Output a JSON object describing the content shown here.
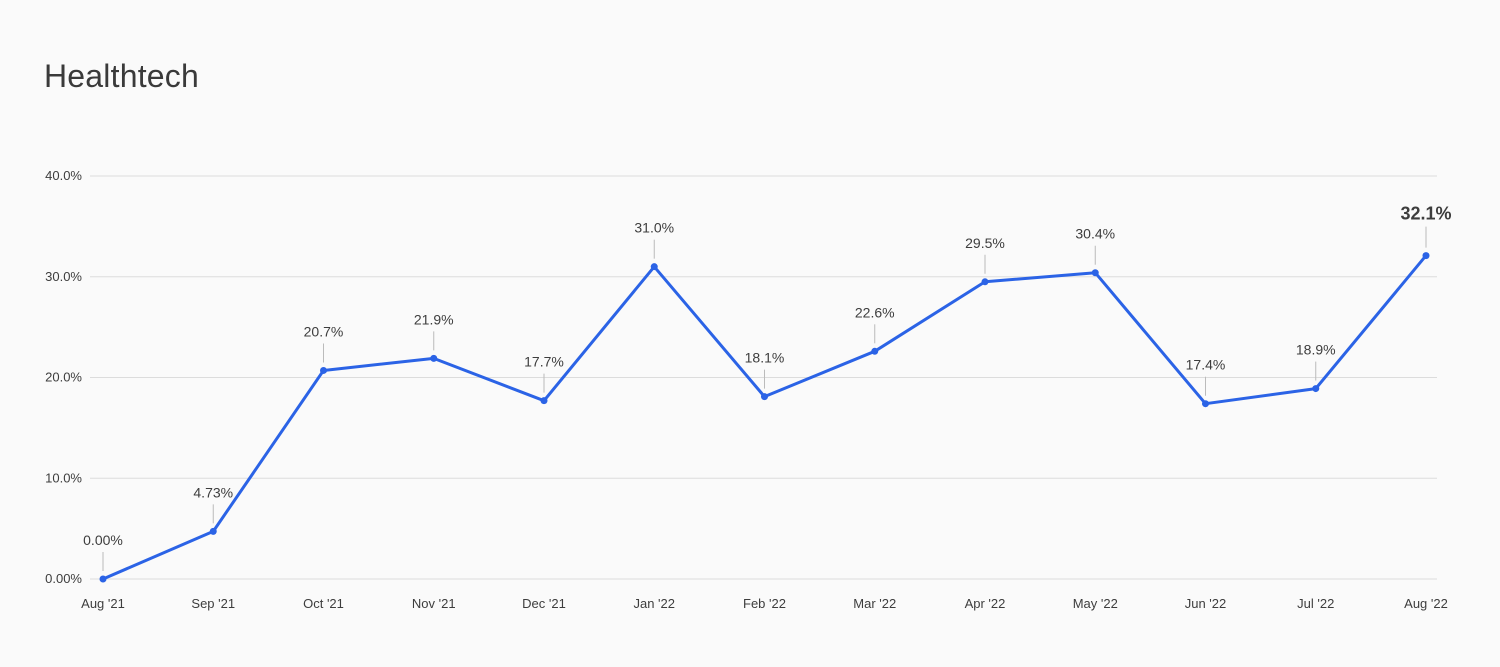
{
  "title": "Healthtech",
  "colors": {
    "line": "#2b63e6",
    "highlight": "#2b63e6",
    "grid": "#dcdcdc",
    "leader": "#bbbbbb",
    "text": "#3d3d3d"
  },
  "chart_data": {
    "type": "line",
    "title": "Healthtech",
    "xlabel": "",
    "ylabel": "",
    "categories": [
      "Aug '21",
      "Sep '21",
      "Oct '21",
      "Nov '21",
      "Dec '21",
      "Jan '22",
      "Feb '22",
      "Mar '22",
      "Apr '22",
      "May '22",
      "Jun '22",
      "Jul '22",
      "Aug '22"
    ],
    "series": [
      {
        "values": [
          0.0,
          4.73,
          20.7,
          21.9,
          17.7,
          31.0,
          18.1,
          22.6,
          29.5,
          30.4,
          17.4,
          18.9,
          32.1
        ]
      }
    ],
    "data_labels": [
      "0.00%",
      "4.73%",
      "20.7%",
      "21.9%",
      "17.7%",
      "31.0%",
      "18.1%",
      "22.6%",
      "29.5%",
      "30.4%",
      "17.4%",
      "18.9%",
      "32.1%"
    ],
    "highlight_index": 12,
    "yticks": [
      0,
      10,
      20,
      30,
      40
    ],
    "ytick_labels": [
      "0.00%",
      "10.0%",
      "20.0%",
      "30.0%",
      "40.0%"
    ],
    "ylim": [
      0,
      40
    ],
    "grid": true,
    "legend": "none"
  }
}
